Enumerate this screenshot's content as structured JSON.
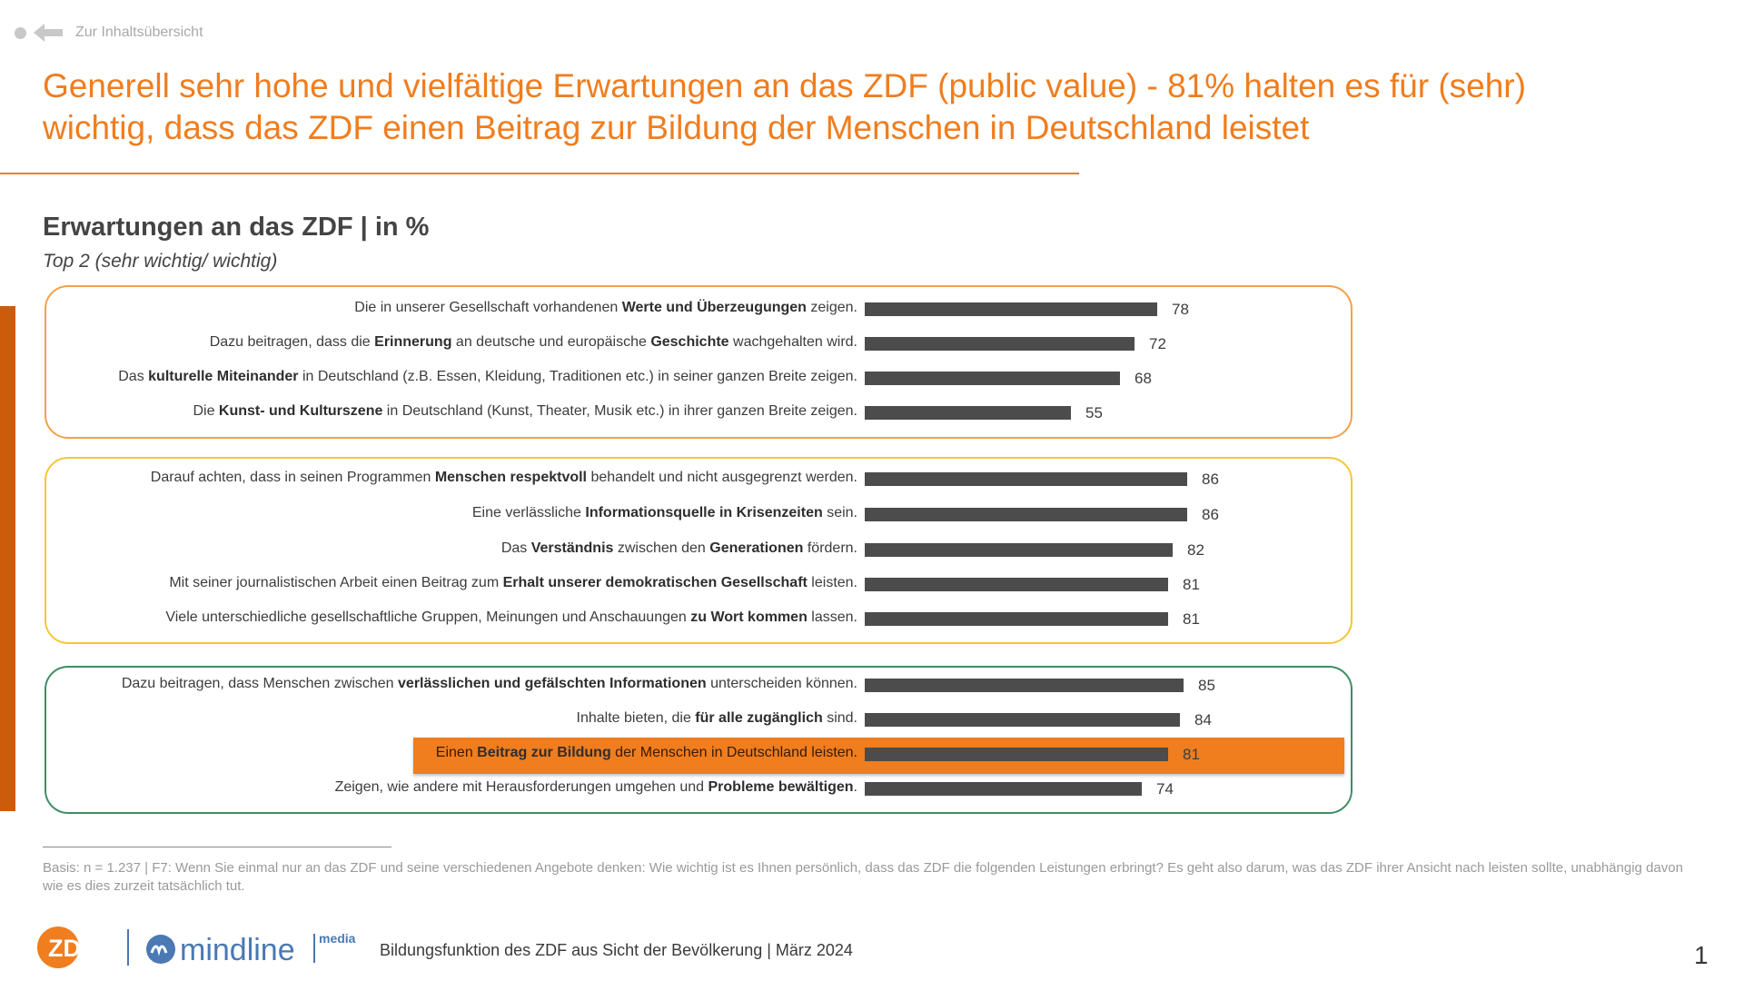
{
  "nav": {
    "back_label": "Zur Inhaltsübersicht"
  },
  "headline": "Generell sehr hohe und vielfältige Erwartungen an das ZDF (public value) - 81% halten es für (sehr) wichtig, dass das ZDF einen Beitrag zur Bildung der Menschen in Deutschland leistet",
  "colors": {
    "accent": "#f07d1e",
    "bar": "#4c4c4c",
    "group1_border": "#f5a146",
    "group2_border": "#f6c538",
    "group3_border": "#3f8d66",
    "side_bar": "#cc5c0b",
    "mindline_blue": "#4a79b3"
  },
  "chart_data": {
    "type": "bar",
    "orientation": "horizontal",
    "title": "Erwartungen an das ZDF | in %",
    "subtitle": "Top 2 (sehr wichtig/ wichtig)",
    "xlim": [
      0,
      100
    ],
    "highlight_index": 11,
    "categories": [
      [
        {
          "t": "Die in unserer Gesellschaft vorhandenen "
        },
        {
          "t": "Werte und Überzeugungen",
          "b": true
        },
        {
          "t": " zeigen."
        }
      ],
      [
        {
          "t": "Dazu beitragen, dass die "
        },
        {
          "t": "Erinnerung",
          "b": true
        },
        {
          "t": " an deutsche und europäische "
        },
        {
          "t": "Geschichte",
          "b": true
        },
        {
          "t": " wachgehalten wird."
        }
      ],
      [
        {
          "t": "Das "
        },
        {
          "t": "kulturelle Miteinander",
          "b": true
        },
        {
          "t": " in Deutschland (z.B. Essen, Kleidung, Traditionen etc.) in seiner ganzen Breite zeigen."
        }
      ],
      [
        {
          "t": "Die "
        },
        {
          "t": "Kunst- und Kulturszene",
          "b": true
        },
        {
          "t": " in Deutschland (Kunst, Theater, Musik etc.) in ihrer ganzen Breite zeigen."
        }
      ],
      [
        {
          "t": "Darauf achten, dass in seinen Programmen "
        },
        {
          "t": "Menschen respektvoll",
          "b": true
        },
        {
          "t": " behandelt und nicht ausgegrenzt werden."
        }
      ],
      [
        {
          "t": "Eine verlässliche "
        },
        {
          "t": "Informationsquelle in Krisenzeiten",
          "b": true
        },
        {
          "t": " sein."
        }
      ],
      [
        {
          "t": "Das "
        },
        {
          "t": "Verständnis",
          "b": true
        },
        {
          "t": " zwischen den "
        },
        {
          "t": "Generationen",
          "b": true
        },
        {
          "t": " fördern."
        }
      ],
      [
        {
          "t": "Mit seiner journalistischen Arbeit einen Beitrag zum "
        },
        {
          "t": "Erhalt unserer demokratischen Gesellschaft",
          "b": true
        },
        {
          "t": " leisten."
        }
      ],
      [
        {
          "t": "Viele unterschiedliche gesellschaftliche Gruppen, Meinungen und Anschauungen "
        },
        {
          "t": "zu Wort kommen",
          "b": true
        },
        {
          "t": " lassen."
        }
      ],
      [
        {
          "t": "Dazu beitragen, dass Menschen zwischen "
        },
        {
          "t": "verlässlichen und gefälschten Informationen",
          "b": true
        },
        {
          "t": " unterscheiden können."
        }
      ],
      [
        {
          "t": "Inhalte bieten, die "
        },
        {
          "t": "für alle zugänglich",
          "b": true
        },
        {
          "t": " sind."
        }
      ],
      [
        {
          "t": "Einen "
        },
        {
          "t": "Beitrag zur Bildung",
          "b": true
        },
        {
          "t": " der Menschen in Deutschland leisten."
        }
      ],
      [
        {
          "t": "Zeigen, wie andere mit Herausforderungen umgehen und "
        },
        {
          "t": "Probleme bewältigen",
          "b": true
        },
        {
          "t": "."
        }
      ]
    ],
    "values": [
      78,
      72,
      68,
      55,
      86,
      86,
      82,
      81,
      81,
      85,
      84,
      81,
      74
    ],
    "groups": [
      [
        0,
        3
      ],
      [
        4,
        8
      ],
      [
        9,
        12
      ]
    ]
  },
  "footnote": "Basis: n = 1.237 | F7: Wenn Sie einmal nur an das ZDF und seine verschiedenen Angebote denken: Wie wichtig ist es Ihnen persönlich, dass das ZDF die folgenden Leistungen erbringt? Es geht also darum, was das ZDF ihrer Ansicht nach leisten sollte, unabhängig davon wie es dies zurzeit tatsächlich tut.",
  "footer": {
    "logo_zdf": "ZDF",
    "logo_mindline": "mindline",
    "logo_media": "media",
    "title": "Bildungsfunktion des ZDF aus Sicht der Bevölkerung | März 2024",
    "page_number": "1"
  }
}
